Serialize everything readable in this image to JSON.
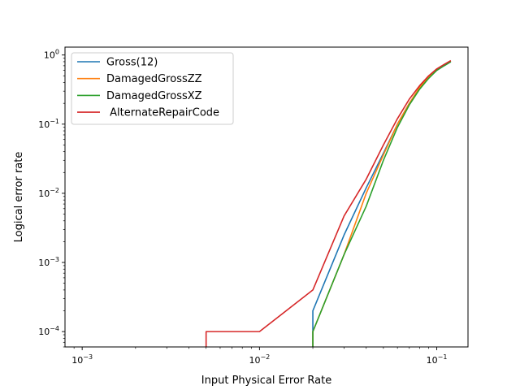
{
  "chart_data": {
    "type": "line",
    "xlabel": "Input Physical Error Rate",
    "ylabel": "Logical error rate",
    "xscale": "log",
    "yscale": "log",
    "xlim": [
      0.0008,
      0.15
    ],
    "ylim": [
      6e-05,
      1.3
    ],
    "grid": false,
    "legend_position": "top-left",
    "x_ticks": [
      {
        "value": 0.001,
        "base": "10",
        "exp": "−3"
      },
      {
        "value": 0.01,
        "base": "10",
        "exp": "−2"
      },
      {
        "value": 0.1,
        "base": "10",
        "exp": "−1"
      }
    ],
    "y_ticks": [
      {
        "value": 0.0001,
        "base": "10",
        "exp": "−4"
      },
      {
        "value": 0.001,
        "base": "10",
        "exp": "−3"
      },
      {
        "value": 0.01,
        "base": "10",
        "exp": "−2"
      },
      {
        "value": 0.1,
        "base": "10",
        "exp": "−1"
      },
      {
        "value": 1,
        "base": "10",
        "exp": "0"
      }
    ],
    "series": [
      {
        "name": "Gross(12)",
        "color": "#1f77b4",
        "x": [
          0.02,
          0.02,
          0.03,
          0.04,
          0.05,
          0.06,
          0.07,
          0.08,
          0.09,
          0.1,
          0.11,
          0.12
        ],
        "y": [
          1e-05,
          0.0002,
          0.0025,
          0.012,
          0.038,
          0.1,
          0.2,
          0.33,
          0.47,
          0.6,
          0.7,
          0.8
        ]
      },
      {
        "name": "DamagedGrossZZ",
        "color": "#ff7f0e",
        "x": [
          0.02,
          0.02,
          0.03,
          0.04,
          0.05,
          0.06,
          0.07,
          0.08,
          0.09,
          0.1,
          0.11,
          0.12
        ],
        "y": [
          1e-05,
          0.0001,
          0.0013,
          0.01,
          0.036,
          0.1,
          0.2,
          0.34,
          0.48,
          0.62,
          0.72,
          0.82
        ]
      },
      {
        "name": "DamagedGrossXZ",
        "color": "#2ca02c",
        "x": [
          0.02,
          0.02,
          0.03,
          0.04,
          0.05,
          0.06,
          0.07,
          0.08,
          0.09,
          0.1,
          0.11,
          0.12
        ],
        "y": [
          1e-05,
          0.0001,
          0.0013,
          0.0065,
          0.03,
          0.09,
          0.19,
          0.32,
          0.46,
          0.6,
          0.7,
          0.8
        ]
      },
      {
        "name": " AlternateRepairCode",
        "color": "#d62728",
        "x": [
          0.005,
          0.005,
          0.01,
          0.02,
          0.03,
          0.04,
          0.05,
          0.06,
          0.07,
          0.08,
          0.09,
          0.1,
          0.11,
          0.12
        ],
        "y": [
          1e-05,
          0.0001,
          0.0001,
          0.0004,
          0.0047,
          0.016,
          0.05,
          0.12,
          0.23,
          0.36,
          0.5,
          0.63,
          0.73,
          0.83
        ]
      }
    ]
  }
}
